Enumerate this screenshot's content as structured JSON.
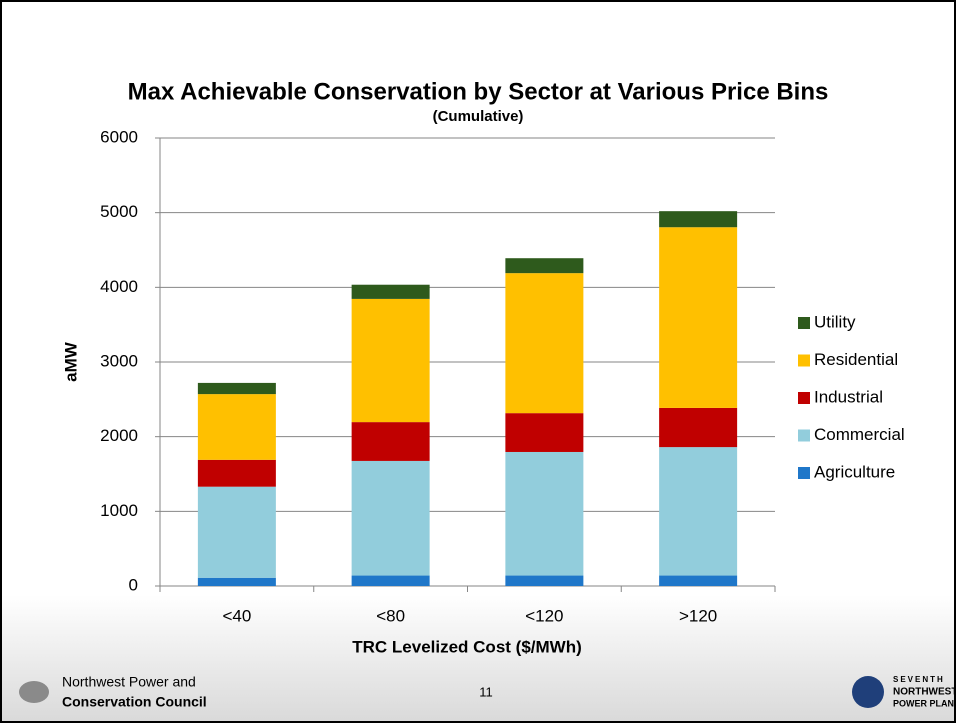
{
  "chart_data": {
    "type": "stacked_bar",
    "title": "Max Achievable Conservation by Sector at Various Price Bins",
    "subtitle": "(Cumulative)",
    "x_label": "TRC Levelized Cost ($/MWh)",
    "y_label": "aMW",
    "categories": [
      "<40",
      "<80",
      "<120",
      ">120"
    ],
    "series": [
      {
        "name": "Agriculture",
        "color": "#1f77c9",
        "values": [
          110,
          140,
          140,
          140
        ]
      },
      {
        "name": "Commercial",
        "color": "#92cddc",
        "values": [
          1220,
          1535,
          1655,
          1720
        ]
      },
      {
        "name": "Industrial",
        "color": "#c00000",
        "values": [
          360,
          520,
          520,
          525
        ]
      },
      {
        "name": "Residential",
        "color": "#ffc000",
        "values": [
          880,
          1650,
          1875,
          2420
        ]
      },
      {
        "name": "Utility",
        "color": "#2e5a1c",
        "values": [
          150,
          190,
          200,
          215
        ]
      }
    ],
    "ylim": [
      0,
      6000
    ],
    "yticks": [
      0,
      1000,
      2000,
      3000,
      4000,
      5000,
      6000
    ],
    "grid": true,
    "legend": "right"
  },
  "footer": {
    "org_line1": "Northwest Power and",
    "org_line2": "Conservation Council",
    "page": "11",
    "plan_line1": "SEVENTH",
    "plan_line2": "NORTHWEST",
    "plan_line3": "POWER PLAN"
  }
}
